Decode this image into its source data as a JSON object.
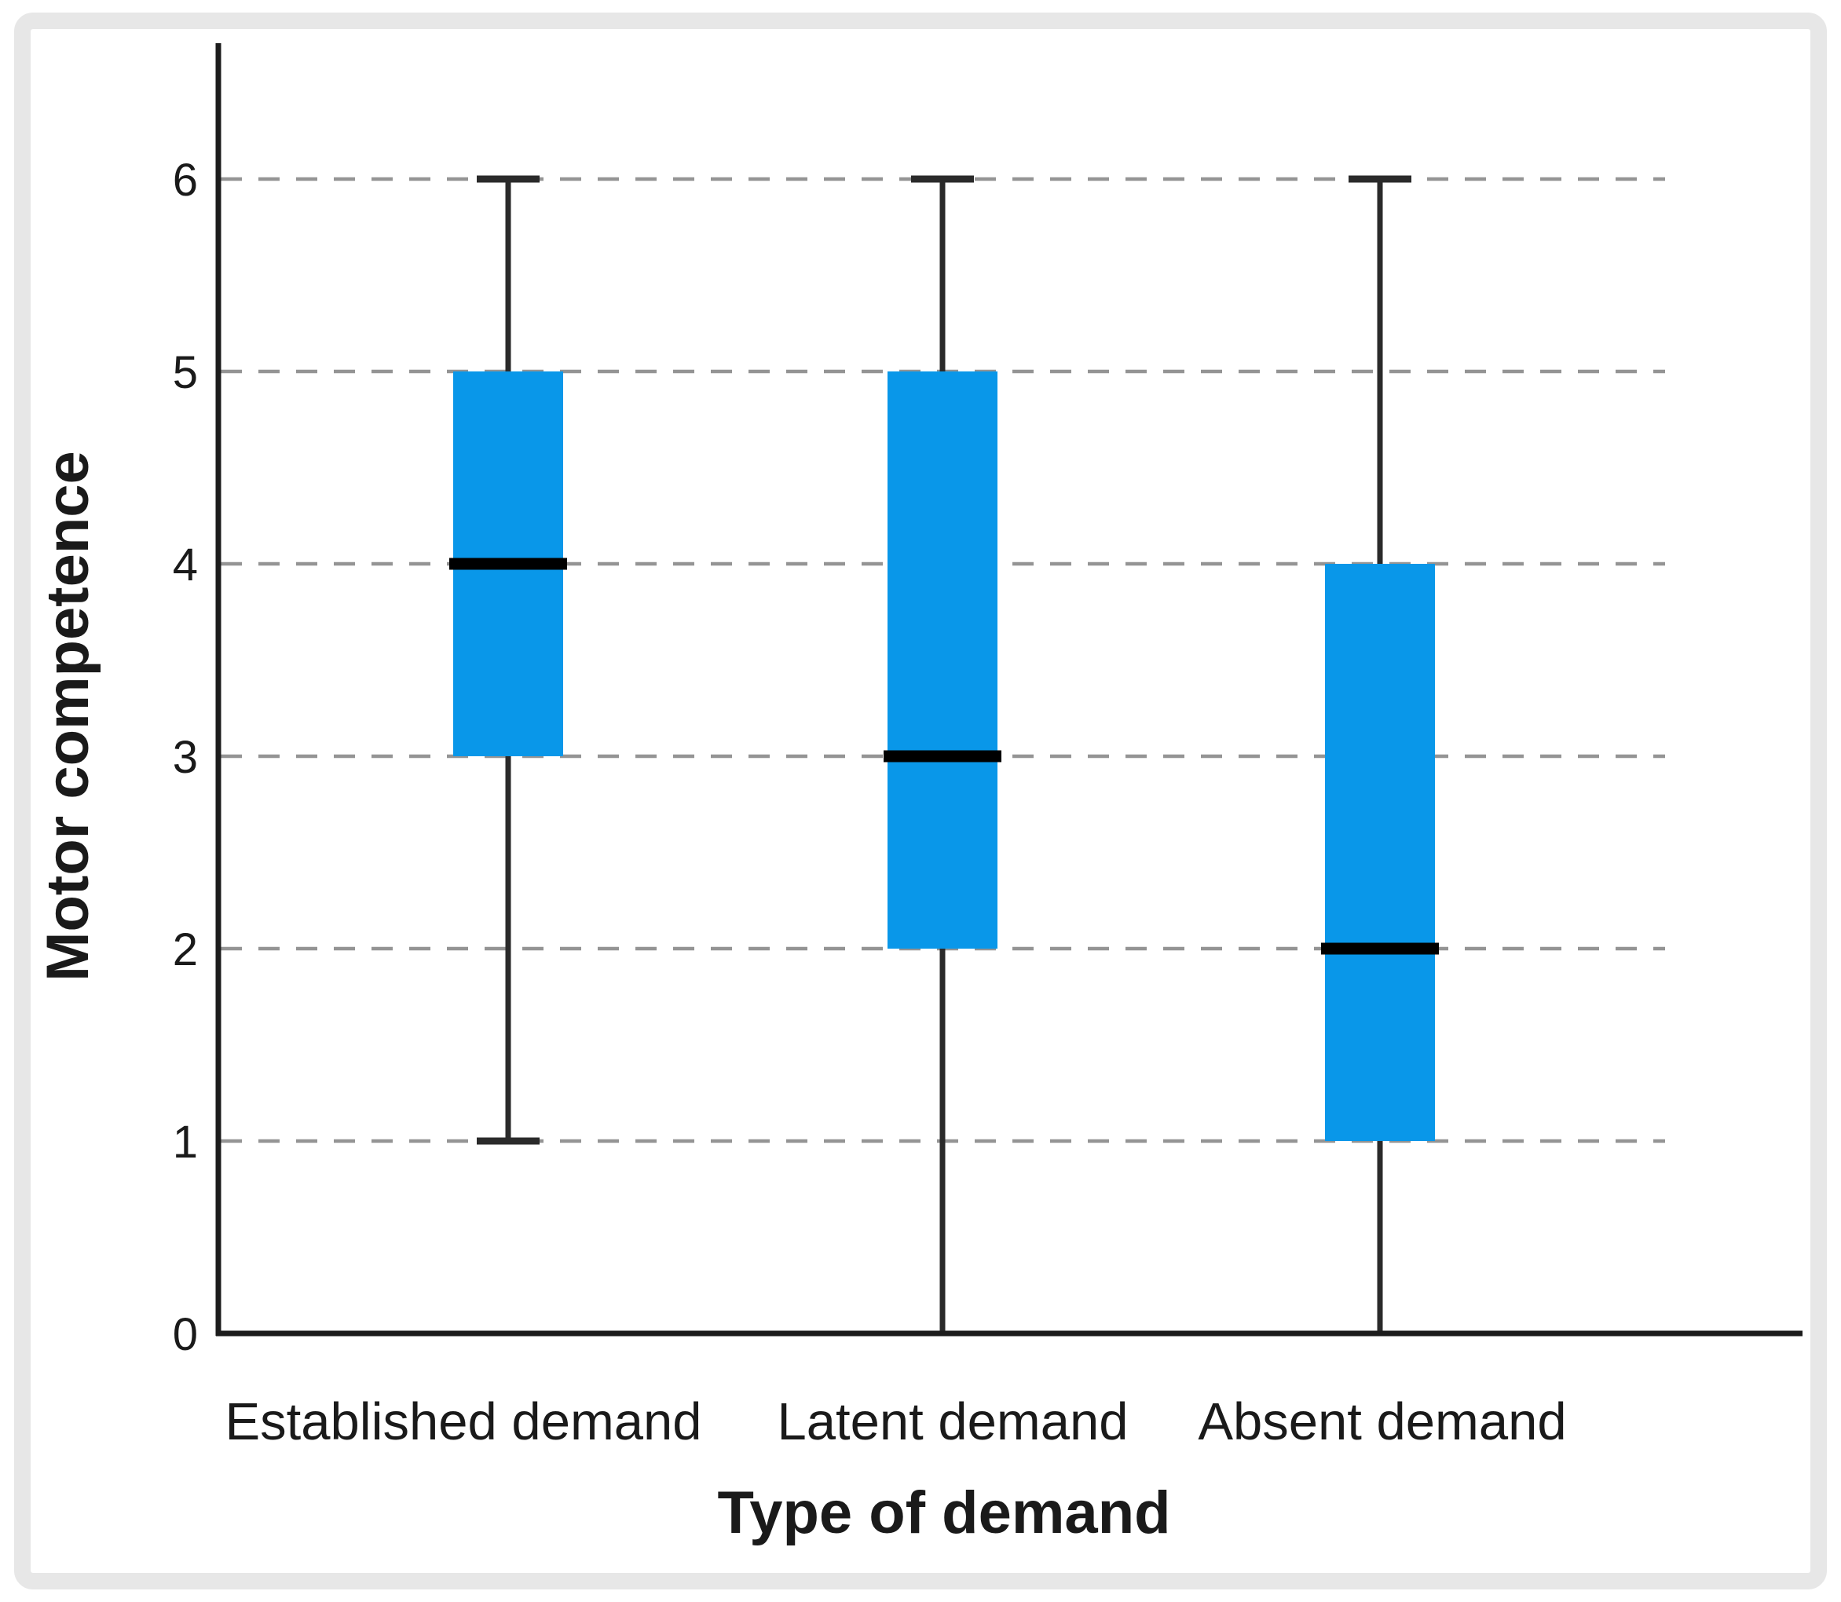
{
  "chart_data": {
    "type": "boxplot",
    "title": "",
    "xlabel": "Type of demand",
    "ylabel": "Motor competence",
    "categories": [
      "Established demand",
      "Latent demand",
      "Absent demand"
    ],
    "ylim": [
      0,
      6
    ],
    "yticks": [
      0,
      1,
      2,
      3,
      4,
      5,
      6
    ],
    "grid": "horizontal-dashed",
    "legend": "none",
    "series": [
      {
        "name": "Established demand",
        "whisker_low": 1,
        "q1": 3,
        "median": 4,
        "q3": 5,
        "whisker_high": 6
      },
      {
        "name": "Latent demand",
        "whisker_low": 0,
        "q1": 2,
        "median": 3,
        "q3": 5,
        "whisker_high": 6
      },
      {
        "name": "Absent demand",
        "whisker_low": 0,
        "q1": 1,
        "median": 2,
        "q3": 4,
        "whisker_high": 6
      }
    ],
    "colors": {
      "box_fill": "#0997e9",
      "median_line": "#000000",
      "whisker": "#2a2a2a",
      "gridline": "#949494",
      "axis": "#1c1c1c",
      "frame_border": "#e7e7e7",
      "background": "#ffffff",
      "text": "#1a1a1a"
    }
  }
}
